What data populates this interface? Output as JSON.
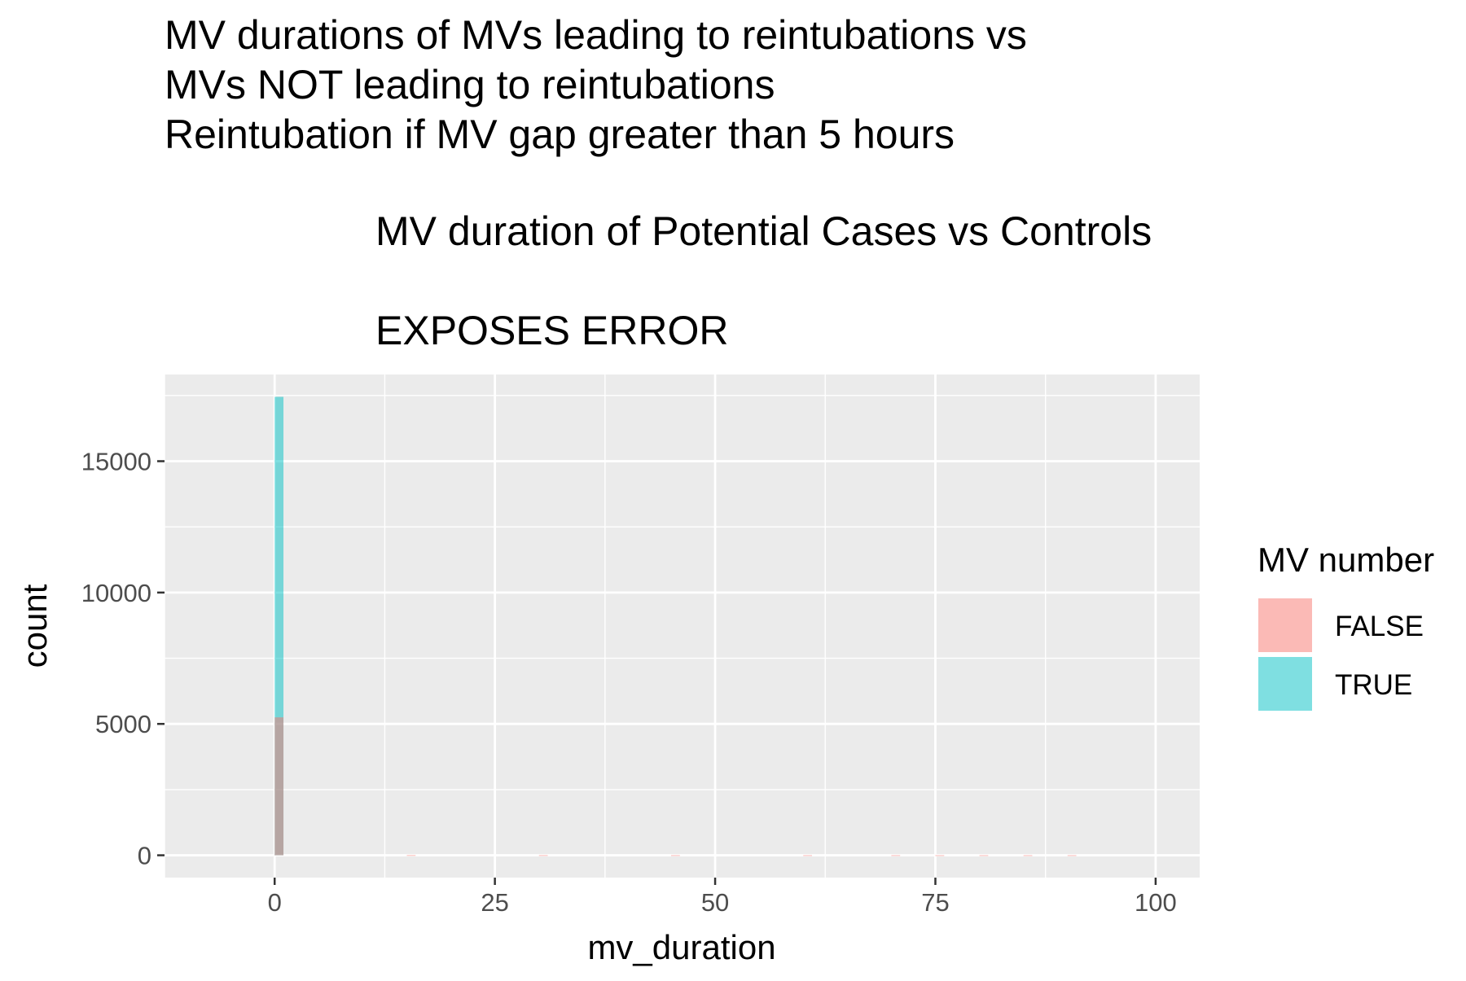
{
  "chart_data": {
    "type": "bar",
    "title_lines": [
      "MV durations of MVs leading to reintubations vs",
      "MVs NOT leading to reintubations",
      "Reintubation if MV gap greater than 5 hours"
    ],
    "subtitle_lines": [
      "MV duration of Potential Cases vs Controls",
      "",
      "EXPOSES ERROR"
    ],
    "xlabel": "mv_duration",
    "ylabel": "count",
    "x_ticks": [
      0,
      25,
      50,
      75,
      100
    ],
    "x_tick_labels": [
      "0",
      "25",
      "50",
      "75",
      "100"
    ],
    "y_ticks": [
      0,
      5000,
      10000,
      15000
    ],
    "y_tick_labels": [
      "0",
      "5000",
      "10000",
      "15000"
    ],
    "xlim": [
      -12.5,
      105
    ],
    "ylim": [
      -850,
      18300
    ],
    "grid": true,
    "bin_width": 1,
    "legend": {
      "title": "MV number",
      "position": "right",
      "entries": [
        "FALSE",
        "TRUE"
      ]
    },
    "series": [
      {
        "name": "FALSE",
        "color": "#F8766D",
        "bins": [
          {
            "x": 0.5,
            "y": 5250
          },
          {
            "x": 15.5,
            "y": 8
          },
          {
            "x": 30.5,
            "y": 6
          },
          {
            "x": 45.5,
            "y": 5
          },
          {
            "x": 60.5,
            "y": 5
          },
          {
            "x": 70.5,
            "y": 5
          },
          {
            "x": 75.5,
            "y": 4
          },
          {
            "x": 80.5,
            "y": 4
          },
          {
            "x": 85.5,
            "y": 4
          },
          {
            "x": 90.5,
            "y": 4
          }
        ]
      },
      {
        "name": "TRUE",
        "color": "#00BFC4",
        "bins": [
          {
            "x": 0.5,
            "y": 17450
          }
        ]
      }
    ],
    "colors": {
      "panel_background": "#EBEBEB",
      "grid_line": "#FFFFFF",
      "false_fill": "#F8766D",
      "true_fill": "#00BFC4",
      "text": "#000000",
      "tick_text": "#4D4D4D"
    }
  }
}
